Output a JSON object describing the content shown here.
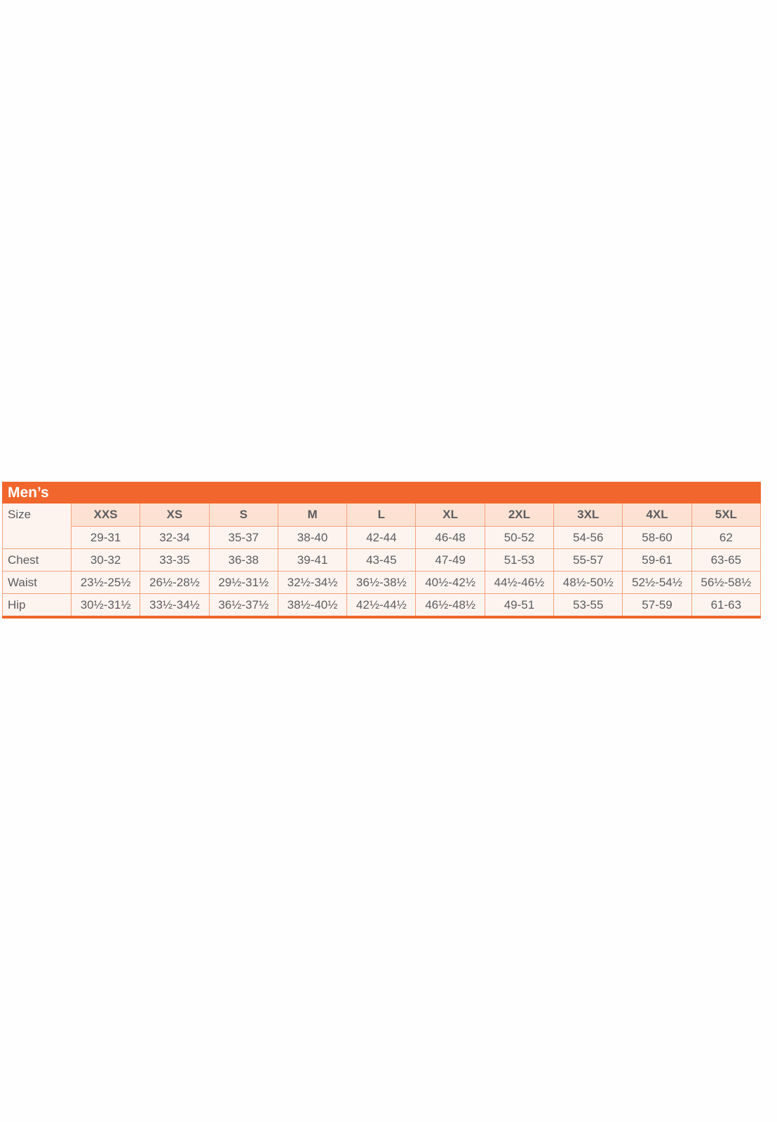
{
  "title": "Men’s",
  "columns": [
    "XXS",
    "XS",
    "S",
    "M",
    "L",
    "XL",
    "2XL",
    "3XL",
    "4XL",
    "5XL"
  ],
  "rows": [
    {
      "label": "Size",
      "values": [
        "29-31",
        "32-34",
        "35-37",
        "38-40",
        "42-44",
        "46-48",
        "50-52",
        "54-56",
        "58-60",
        "62"
      ]
    },
    {
      "label": "Chest",
      "values": [
        "30-32",
        "33-35",
        "36-38",
        "39-41",
        "43-45",
        "47-49",
        "51-53",
        "55-57",
        "59-61",
        "63-65"
      ]
    },
    {
      "label": "Waist",
      "values": [
        "23½-25½",
        "26½-28½",
        "29½-31½",
        "32½-34½",
        "36½-38½",
        "40½-42½",
        "44½-46½",
        "48½-50½",
        "52½-54½",
        "56½-58½"
      ]
    },
    {
      "label": "Hip",
      "values": [
        "30½-31½",
        "33½-34½",
        "36½-37½",
        "38½-40½",
        "42½-44½",
        "46½-48½",
        "49-51",
        "53-55",
        "57-59",
        "61-63"
      ]
    }
  ],
  "colors": {
    "accent": "#f0662c",
    "header_fill": "#fde2d3",
    "cell_fill": "#fdf4ef",
    "text": "#5c5c60"
  }
}
